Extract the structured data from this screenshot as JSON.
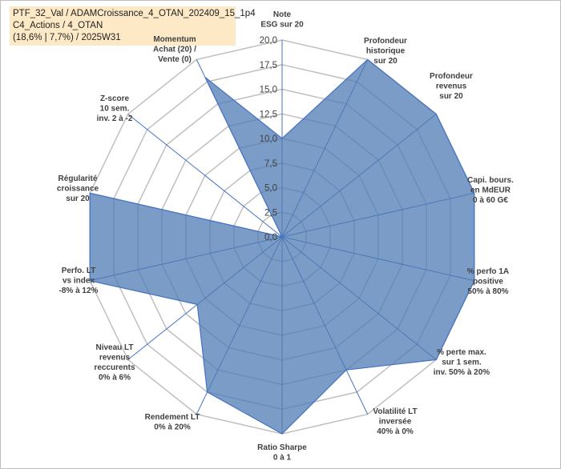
{
  "title_lines": [
    "PTF_32_Val / ADAMCroissance_4_OTAN_202409_15_1p4",
    "C4_Actions / 4_OTAN",
    "(18,6% | 7,7%) / 2025W31"
  ],
  "colors": {
    "fill": "#4f7bb3",
    "line": "#4472c4",
    "grid": "#bfbfbf",
    "label_highlight": "#fde9c6"
  },
  "chart_data": {
    "type": "radar",
    "rlim": [
      0,
      20
    ],
    "ticks": [
      "0,0",
      "2,5",
      "5,0",
      "7,5",
      "10,0",
      "12,5",
      "15,0",
      "17,5",
      "20,0"
    ],
    "tick_values": [
      0,
      2.5,
      5,
      7.5,
      10,
      12.5,
      15,
      17.5,
      20
    ],
    "grid": true,
    "axes": [
      {
        "lines": [
          "Note",
          "ESG sur 20"
        ],
        "value": 10
      },
      {
        "lines": [
          "Profondeur",
          "historique",
          "sur 20"
        ],
        "value": 20
      },
      {
        "lines": [
          "Profondeur",
          "revenus",
          "sur 20"
        ],
        "value": 20
      },
      {
        "lines": [
          "Capi. bours.",
          "en MdEUR",
          "0 à 60 G€"
        ],
        "value": 20
      },
      {
        "lines": [
          "% perfo 1A",
          "positive",
          "50% à 80%"
        ],
        "value": 20
      },
      {
        "lines": [
          "% perte max.",
          "sur 1 sem.",
          "inv. 50% à 20%"
        ],
        "value": 20
      },
      {
        "lines": [
          "Volatilité LT",
          "inversée",
          "40% à 0%"
        ],
        "value": 15
      },
      {
        "lines": [
          "Ratio Sharpe",
          "0 à 1"
        ],
        "value": 20
      },
      {
        "lines": [
          "Rendement LT",
          "0% à 20%"
        ],
        "value": 17.5
      },
      {
        "lines": [
          "Niveau LT",
          "revenus",
          "reccurents",
          "0% à 6%"
        ],
        "value": 11
      },
      {
        "lines": [
          "Perfo. LT",
          "vs index",
          "-8% à 12%"
        ],
        "value": 20
      },
      {
        "lines": [
          "Régularité",
          "croissance",
          "sur 20"
        ],
        "value": 20
      },
      {
        "lines": [
          "Z-score",
          "10 sem.",
          "inv. 2 à -2"
        ],
        "value": 0
      },
      {
        "lines": [
          "Momentum",
          "Achat (20) /",
          "Vente (0)"
        ],
        "value": 18,
        "highlight_first_line": true
      }
    ]
  }
}
